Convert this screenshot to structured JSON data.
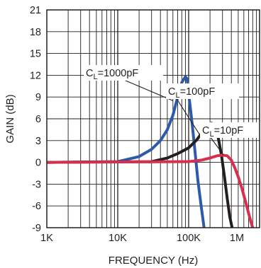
{
  "chart_data": {
    "type": "line",
    "xlabel": "FREQUENCY (Hz)",
    "ylabel": "GAIN (dB)",
    "x_scale": "log",
    "xlim": [
      1000,
      1000000
    ],
    "ylim": [
      -9,
      21
    ],
    "x_ticks": [
      {
        "value": 1000,
        "label": "1K"
      },
      {
        "value": 10000,
        "label": "10K"
      },
      {
        "value": 100000,
        "label": "100K"
      },
      {
        "value": 1000000,
        "label": "1M"
      }
    ],
    "y_ticks": [
      {
        "value": 21,
        "label": "21"
      },
      {
        "value": 18,
        "label": "18"
      },
      {
        "value": 15,
        "label": "15"
      },
      {
        "value": 12,
        "label": "12"
      },
      {
        "value": 9,
        "label": "9"
      },
      {
        "value": 6,
        "label": "6"
      },
      {
        "value": 3,
        "label": "3"
      },
      {
        "value": 0,
        "label": "0"
      },
      {
        "value": -3,
        "label": "-3"
      },
      {
        "value": -6,
        "label": "-6"
      },
      {
        "value": -9,
        "label": "-9"
      }
    ],
    "grid": true,
    "series": [
      {
        "name": "CL=1000pF",
        "label_main": "C",
        "label_sub": "L",
        "label_rest": "=1000pF",
        "color": "#2e5aa8",
        "points": [
          [
            1000,
            0
          ],
          [
            10000,
            0.1
          ],
          [
            20000,
            0.8
          ],
          [
            30000,
            1.8
          ],
          [
            40000,
            3.0
          ],
          [
            50000,
            4.5
          ],
          [
            60000,
            6.5
          ],
          [
            70000,
            9.0
          ],
          [
            80000,
            11.0
          ],
          [
            90000,
            11.8
          ],
          [
            95000,
            11.5
          ],
          [
            100000,
            9.5
          ],
          [
            110000,
            6.0
          ],
          [
            120000,
            2.5
          ],
          [
            135000,
            -2.5
          ],
          [
            150000,
            -6.0
          ],
          [
            165000,
            -9.0
          ]
        ]
      },
      {
        "name": "CL=100pF",
        "label_main": "C",
        "label_sub": "L",
        "label_rest": "=100pF",
        "color": "#231f20",
        "points": [
          [
            1000,
            0
          ],
          [
            30000,
            0.1
          ],
          [
            50000,
            0.6
          ],
          [
            70000,
            1.2
          ],
          [
            100000,
            2.0
          ],
          [
            130000,
            3.1
          ],
          [
            160000,
            4.3
          ],
          [
            190000,
            5.1
          ],
          [
            210000,
            5.4
          ],
          [
            230000,
            5.0
          ],
          [
            260000,
            3.5
          ],
          [
            290000,
            1.0
          ],
          [
            320000,
            -2.0
          ],
          [
            350000,
            -5.0
          ],
          [
            380000,
            -7.5
          ],
          [
            410000,
            -9.0
          ]
        ]
      },
      {
        "name": "CL=10pF",
        "label_main": "C",
        "label_sub": "L",
        "label_rest": "=10pF",
        "color": "#d72f4e",
        "points": [
          [
            1000,
            0
          ],
          [
            100000,
            0.1
          ],
          [
            150000,
            0.3
          ],
          [
            200000,
            0.6
          ],
          [
            250000,
            0.9
          ],
          [
            300000,
            1.0
          ],
          [
            350000,
            0.9
          ],
          [
            400000,
            0.3
          ],
          [
            450000,
            -0.8
          ],
          [
            500000,
            -2.0
          ],
          [
            560000,
            -3.5
          ],
          [
            630000,
            -5.3
          ],
          [
            700000,
            -7.0
          ],
          [
            760000,
            -8.3
          ],
          [
            800000,
            -9.0
          ]
        ]
      }
    ]
  }
}
